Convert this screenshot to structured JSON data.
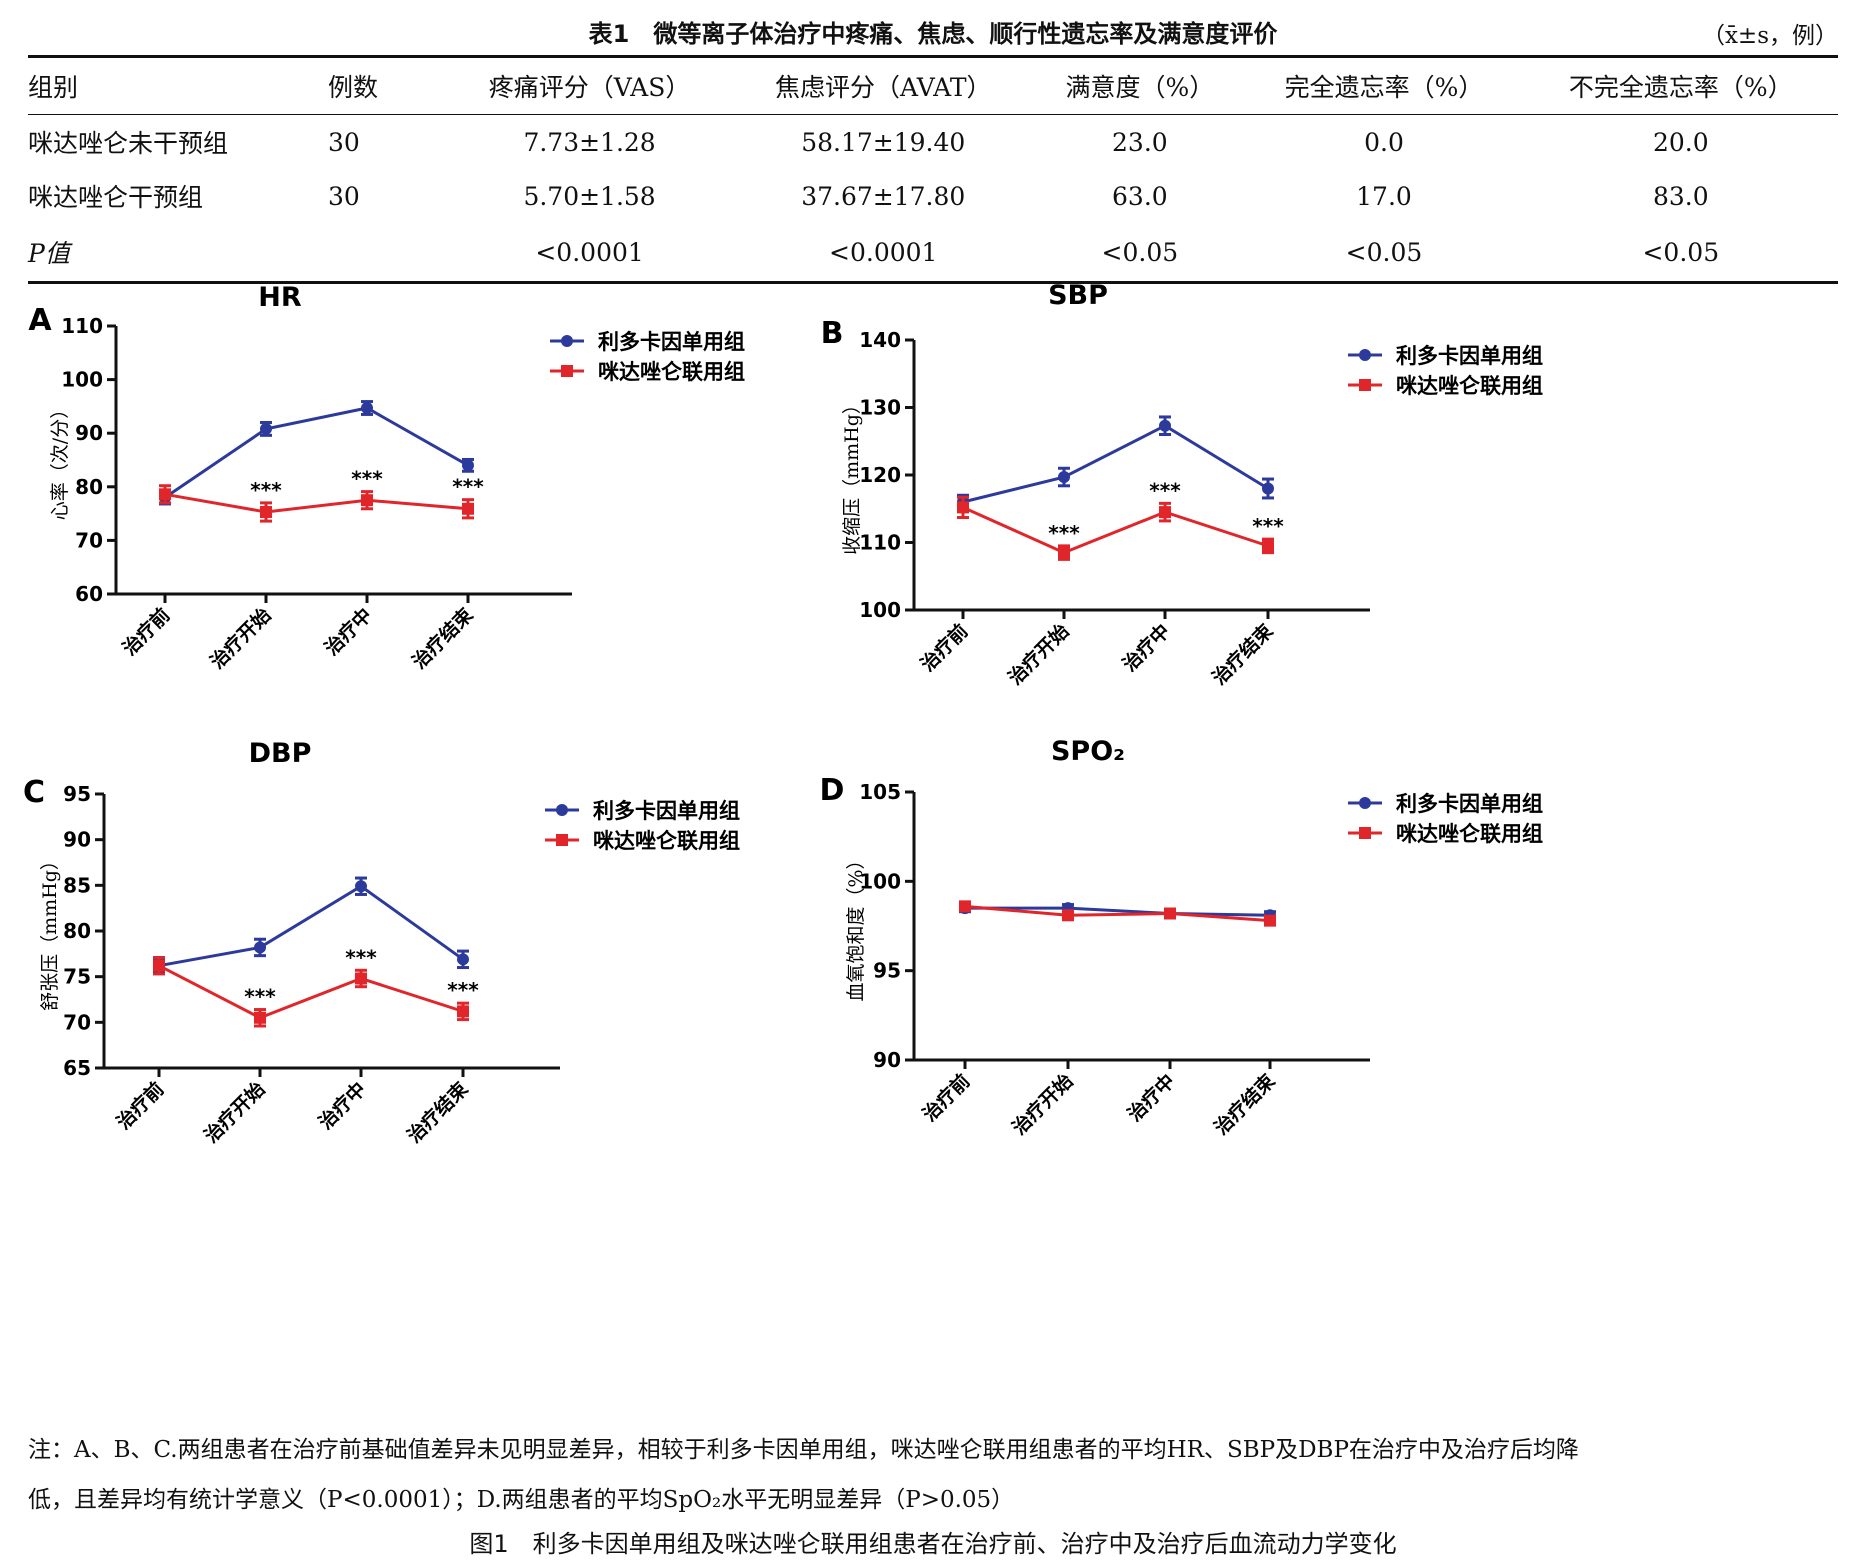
{
  "table": {
    "title": "表1　微等离子体治疗中疼痛、焦虑、顺行性遗忘率及满意度评价",
    "unit_note": "（x̄±s，例）",
    "headers": [
      "组别",
      "例数",
      "疼痛评分（VAS）",
      "焦虑评分（AVAT）",
      "满意度（%）",
      "完全遗忘率（%）",
      "不完全遗忘率（%）"
    ],
    "rows": [
      [
        "咪达唑仑未干预组",
        "30",
        "7.73±1.28",
        "58.17±19.40",
        "23.0",
        "0.0",
        "20.0"
      ],
      [
        "咪达唑仑干预组",
        "30",
        "5.70±1.58",
        "37.67±17.80",
        "63.0",
        "17.0",
        "83.0"
      ],
      [
        "P值",
        "",
        "<0.0001",
        "<0.0001",
        "<0.05",
        "<0.05",
        "<0.05"
      ]
    ]
  },
  "chart_data": [
    {
      "type": "line",
      "panel": "A",
      "title": "HR",
      "ylabel": "心率（次/分）",
      "categories": [
        "治疗前",
        "治疗开始",
        "治疗中",
        "治疗结束"
      ],
      "ylim": [
        60,
        110
      ],
      "yticks": [
        60,
        70,
        80,
        90,
        100,
        110
      ],
      "series": [
        {
          "name": "利多卡因单用组",
          "color": "#2c3a9c",
          "marker": "circle",
          "values": [
            78.0,
            90.8,
            94.7,
            84.0
          ],
          "errors": [
            1.2,
            1.2,
            1.2,
            1.1
          ]
        },
        {
          "name": "咪达唑仑联用组",
          "color": "#e0262a",
          "marker": "square",
          "values": [
            78.6,
            75.3,
            77.5,
            75.9
          ],
          "errors": [
            1.6,
            1.7,
            1.6,
            1.7
          ]
        }
      ],
      "annotations": [
        {
          "category": "治疗开始",
          "text": "***"
        },
        {
          "category": "治疗中",
          "text": "***"
        },
        {
          "category": "治疗结束",
          "text": "***"
        }
      ]
    },
    {
      "type": "line",
      "panel": "B",
      "title": "SBP",
      "ylabel": "收缩压（mmHg）",
      "categories": [
        "治疗前",
        "治疗开始",
        "治疗中",
        "治疗结束"
      ],
      "ylim": [
        100,
        140
      ],
      "yticks": [
        100,
        110,
        120,
        130,
        140
      ],
      "series": [
        {
          "name": "利多卡因单用组",
          "color": "#2c3a9c",
          "marker": "circle",
          "values": [
            116.0,
            119.7,
            127.3,
            118.0
          ],
          "errors": [
            1.0,
            1.3,
            1.3,
            1.4
          ]
        },
        {
          "name": "咪达唑仑联用组",
          "color": "#e0262a",
          "marker": "square",
          "values": [
            115.2,
            108.5,
            114.5,
            109.5
          ],
          "errors": [
            1.5,
            1.0,
            1.3,
            1.0
          ]
        }
      ],
      "annotations": [
        {
          "category": "治疗开始",
          "text": "***"
        },
        {
          "category": "治疗中",
          "text": "***"
        },
        {
          "category": "治疗结束",
          "text": "***"
        }
      ]
    },
    {
      "type": "line",
      "panel": "C",
      "title": "DBP",
      "ylabel": "舒张压（mmHg）",
      "categories": [
        "治疗前",
        "治疗开始",
        "治疗中",
        "治疗结束"
      ],
      "ylim": [
        65,
        95
      ],
      "yticks": [
        65,
        70,
        75,
        80,
        85,
        90,
        95
      ],
      "series": [
        {
          "name": "利多卡因单用组",
          "color": "#2c3a9c",
          "marker": "circle",
          "values": [
            76.2,
            78.2,
            84.9,
            76.9
          ],
          "errors": [
            0.8,
            0.9,
            0.9,
            0.9
          ]
        },
        {
          "name": "咪达唑仑联用组",
          "color": "#e0262a",
          "marker": "square",
          "values": [
            76.2,
            70.5,
            74.8,
            71.2
          ],
          "errors": [
            0.9,
            0.9,
            0.9,
            0.9
          ]
        }
      ],
      "annotations": [
        {
          "category": "治疗开始",
          "text": "***"
        },
        {
          "category": "治疗中",
          "text": "***"
        },
        {
          "category": "治疗结束",
          "text": "***"
        }
      ]
    },
    {
      "type": "line",
      "panel": "D",
      "title": "SPO₂",
      "ylabel": "血氧饱和度（%）",
      "categories": [
        "治疗前",
        "治疗开始",
        "治疗中",
        "治疗结束"
      ],
      "ylim": [
        90,
        105
      ],
      "yticks": [
        90,
        95,
        100,
        105
      ],
      "series": [
        {
          "name": "利多卡因单用组",
          "color": "#2c3a9c",
          "marker": "circle",
          "values": [
            98.5,
            98.5,
            98.2,
            98.1
          ],
          "errors": [
            0.2,
            0.2,
            0.2,
            0.2
          ]
        },
        {
          "name": "咪达唑仑联用组",
          "color": "#e0262a",
          "marker": "square",
          "values": [
            98.6,
            98.1,
            98.2,
            97.8
          ],
          "errors": [
            0.2,
            0.2,
            0.2,
            0.2
          ]
        }
      ],
      "annotations": []
    }
  ],
  "note": {
    "line1": "注：A、B、C.两组患者在治疗前基础值差异未见明显差异，相较于利多卡因单用组，咪达唑仑联用组患者的平均HR、SBP及DBP在治疗中及治疗后均降",
    "line2": "低，且差异均有统计学意义（P<0.0001）；D.两组患者的平均SpO₂水平无明显差异（P>0.05）"
  },
  "figure_caption": "图1　利多卡因单用组及咪达唑仑联用组患者在治疗前、治疗中及治疗后血流动力学变化"
}
